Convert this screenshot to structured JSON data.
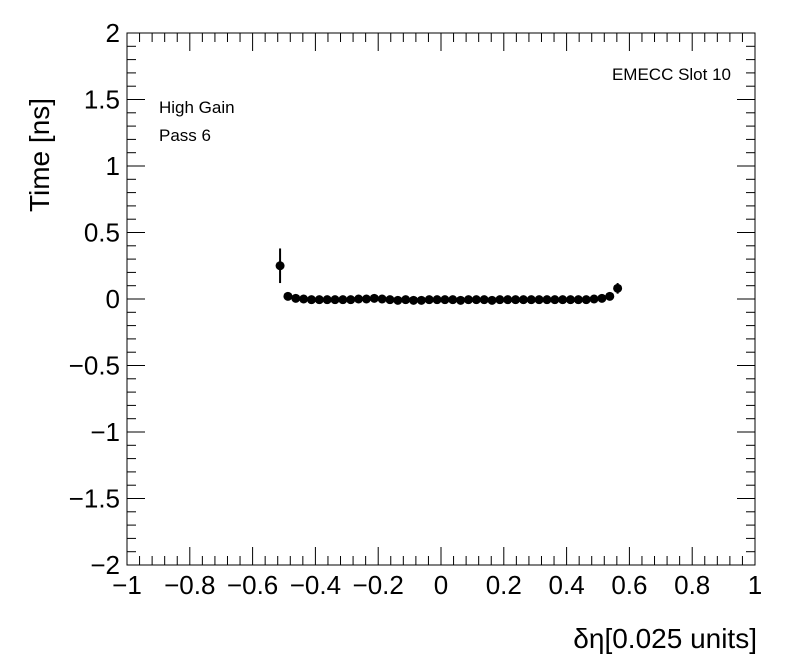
{
  "chart_data": {
    "type": "scatter",
    "title": "",
    "xlabel": "δη[0.025 units]",
    "ylabel": "Time [ns]",
    "xlim": [
      -1,
      1
    ],
    "ylim": [
      -2,
      2
    ],
    "xticks": [
      "−1",
      "−0.8",
      "−0.6",
      "−0.4",
      "−0.2",
      "0",
      "0.2",
      "0.4",
      "0.6",
      "0.8",
      "1"
    ],
    "yticks": [
      "−2",
      "−1.5",
      "−1",
      "−0.5",
      "0",
      "0.5",
      "1",
      "1.5",
      "2"
    ],
    "annotations": {
      "top_right": "EMECC Slot 10",
      "line1": "High Gain",
      "line2": "Pass 6"
    },
    "grid": false,
    "series": [
      {
        "points": [
          {
            "x": -0.5125,
            "y": 0.25,
            "err": 0.13
          },
          {
            "x": -0.4875,
            "y": 0.02,
            "err": 0.01
          },
          {
            "x": -0.4625,
            "y": 0.005,
            "err": 0.01
          },
          {
            "x": -0.4375,
            "y": 0.0,
            "err": 0.01
          },
          {
            "x": -0.4125,
            "y": -0.005,
            "err": 0.01
          },
          {
            "x": -0.3875,
            "y": -0.005,
            "err": 0.01
          },
          {
            "x": -0.3625,
            "y": -0.005,
            "err": 0.01
          },
          {
            "x": -0.3375,
            "y": -0.005,
            "err": 0.01
          },
          {
            "x": -0.3125,
            "y": -0.005,
            "err": 0.01
          },
          {
            "x": -0.2875,
            "y": -0.005,
            "err": 0.01
          },
          {
            "x": -0.2625,
            "y": 0.0,
            "err": 0.01
          },
          {
            "x": -0.2375,
            "y": 0.0,
            "err": 0.01
          },
          {
            "x": -0.2125,
            "y": 0.005,
            "err": 0.01
          },
          {
            "x": -0.1875,
            "y": 0.0,
            "err": 0.01
          },
          {
            "x": -0.1625,
            "y": -0.005,
            "err": 0.01
          },
          {
            "x": -0.1375,
            "y": -0.01,
            "err": 0.01
          },
          {
            "x": -0.1125,
            "y": -0.005,
            "err": 0.01
          },
          {
            "x": -0.0875,
            "y": -0.01,
            "err": 0.01
          },
          {
            "x": -0.0625,
            "y": -0.01,
            "err": 0.01
          },
          {
            "x": -0.0375,
            "y": -0.005,
            "err": 0.01
          },
          {
            "x": -0.0125,
            "y": -0.005,
            "err": 0.01
          },
          {
            "x": 0.0125,
            "y": -0.005,
            "err": 0.01
          },
          {
            "x": 0.0375,
            "y": -0.005,
            "err": 0.01
          },
          {
            "x": 0.0625,
            "y": -0.01,
            "err": 0.01
          },
          {
            "x": 0.0875,
            "y": -0.005,
            "err": 0.01
          },
          {
            "x": 0.1125,
            "y": -0.005,
            "err": 0.01
          },
          {
            "x": 0.1375,
            "y": -0.005,
            "err": 0.01
          },
          {
            "x": 0.1625,
            "y": -0.01,
            "err": 0.01
          },
          {
            "x": 0.1875,
            "y": -0.005,
            "err": 0.01
          },
          {
            "x": 0.2125,
            "y": -0.005,
            "err": 0.01
          },
          {
            "x": 0.2375,
            "y": -0.005,
            "err": 0.01
          },
          {
            "x": 0.2625,
            "y": -0.005,
            "err": 0.01
          },
          {
            "x": 0.2875,
            "y": -0.005,
            "err": 0.01
          },
          {
            "x": 0.3125,
            "y": -0.005,
            "err": 0.01
          },
          {
            "x": 0.3375,
            "y": -0.005,
            "err": 0.01
          },
          {
            "x": 0.3625,
            "y": -0.005,
            "err": 0.01
          },
          {
            "x": 0.3875,
            "y": -0.005,
            "err": 0.01
          },
          {
            "x": 0.4125,
            "y": -0.005,
            "err": 0.01
          },
          {
            "x": 0.4375,
            "y": -0.005,
            "err": 0.01
          },
          {
            "x": 0.4625,
            "y": -0.005,
            "err": 0.01
          },
          {
            "x": 0.4875,
            "y": 0.0,
            "err": 0.01
          },
          {
            "x": 0.5125,
            "y": 0.005,
            "err": 0.01
          },
          {
            "x": 0.5375,
            "y": 0.02,
            "err": 0.02
          },
          {
            "x": 0.5625,
            "y": 0.08,
            "err": 0.04
          }
        ]
      }
    ],
    "colors": {
      "marker": "#000000",
      "frame": "#000000"
    }
  }
}
